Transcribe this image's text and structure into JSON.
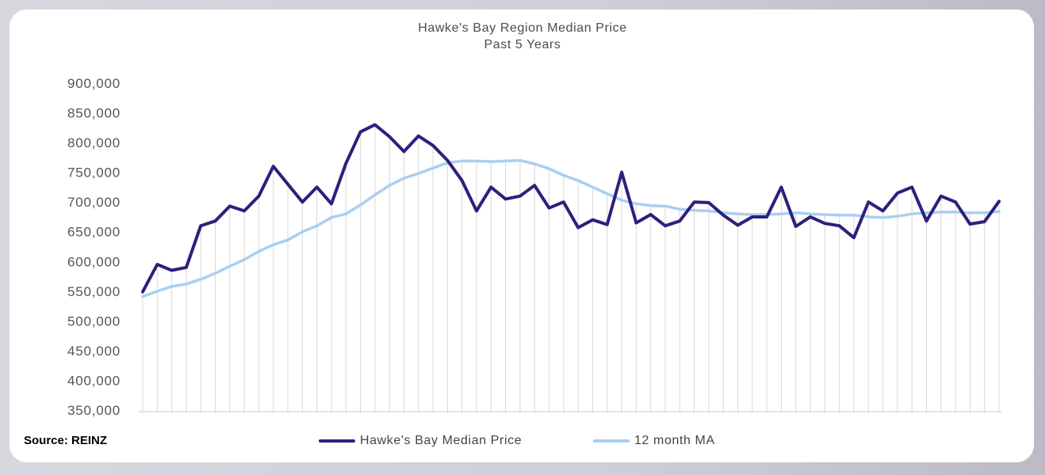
{
  "source_label": "Source: REINZ",
  "colors": {
    "median": "#2e1f7d",
    "ma": "#a9cff0",
    "grid": "#d8d8d8",
    "axis_text": "#555555"
  },
  "chart_data": {
    "type": "line",
    "title": "Hawke's Bay Region Median Price",
    "subtitle": "Past 5 Years",
    "xlabel": "",
    "ylabel": "",
    "ylim": [
      350000,
      900000
    ],
    "yticks": [
      350000,
      400000,
      450000,
      500000,
      550000,
      600000,
      650000,
      700000,
      750000,
      800000,
      850000,
      900000
    ],
    "ytick_labels": [
      "350,000",
      "400,000",
      "450,000",
      "500,000",
      "550,000",
      "600,000",
      "650,000",
      "700,000",
      "750,000",
      "800,000",
      "850,000",
      "900,000"
    ],
    "grid": "vertical",
    "legend": "bottom",
    "series": [
      {
        "name": "Hawke's Bay Median Price",
        "values": [
          549000,
          595000,
          585000,
          590000,
          660000,
          668000,
          693000,
          685000,
          710000,
          760000,
          730000,
          700000,
          725000,
          697000,
          765000,
          818000,
          830000,
          810000,
          785000,
          811000,
          795000,
          770000,
          736000,
          685000,
          725000,
          705000,
          710000,
          728000,
          690000,
          700000,
          657000,
          670000,
          662000,
          750000,
          665000,
          679000,
          660000,
          668000,
          700000,
          699000,
          678000,
          661000,
          675000,
          675000,
          725000,
          659000,
          675000,
          664000,
          660000,
          640000,
          700000,
          685000,
          715000,
          725000,
          668000,
          710000,
          700000,
          663000,
          667000,
          701000
        ]
      },
      {
        "name": "12 month MA",
        "values": [
          541000,
          550000,
          558000,
          562000,
          570000,
          580000,
          592000,
          603000,
          617000,
          628000,
          636000,
          650000,
          660000,
          674000,
          680000,
          695000,
          712000,
          728000,
          740000,
          748000,
          757000,
          766000,
          769000,
          769000,
          768000,
          769000,
          770000,
          764000,
          756000,
          745000,
          736000,
          725000,
          714000,
          703000,
          697000,
          694000,
          693000,
          688000,
          686000,
          685000,
          682000,
          680000,
          679000,
          679000,
          680000,
          682000,
          680000,
          679000,
          678000,
          678000,
          675000,
          674000,
          676000,
          680000,
          682000,
          683000,
          683000,
          682000,
          682000,
          684000
        ]
      }
    ]
  }
}
